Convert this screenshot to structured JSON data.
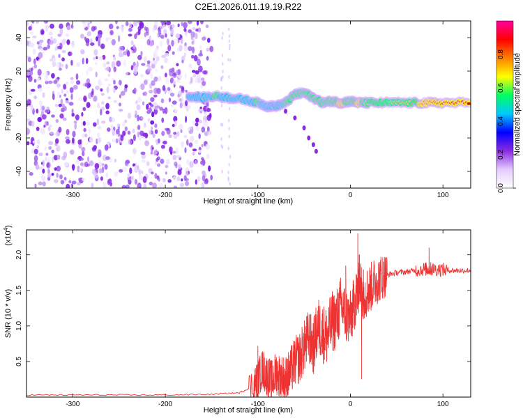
{
  "title": "C2E1.2026.011.19.19.R22",
  "chart_data": [
    {
      "type": "heatmap",
      "name": "spectrogram",
      "xlabel": "Height of straight line (km)",
      "ylabel": "Frequency (Hz)",
      "xlim": [
        -350,
        130
      ],
      "ylim": [
        -50,
        50
      ],
      "xticks": [
        -300,
        -200,
        -100,
        0,
        100
      ],
      "yticks": [
        -40,
        -20,
        0,
        20,
        40
      ],
      "grid": false,
      "colorbar": {
        "label": "Normalized spectral amplitude",
        "range": [
          0,
          1
        ],
        "ticks": [
          "0.0",
          "0.2",
          "0.4",
          "0.6",
          "0.8"
        ],
        "colormap": [
          "#ffffff",
          "#e4ccff",
          "#8a2be2",
          "#0000ff",
          "#00c8ff",
          "#00ff60",
          "#ffff00",
          "#ff8000",
          "#ff0000",
          "#ff00a0"
        ]
      },
      "noise_region_x": [
        -350,
        -150
      ],
      "signal_track": {
        "x": [
          -175,
          -160,
          -145,
          -130,
          -115,
          -100,
          -90,
          -80,
          -70,
          -60,
          -50,
          -40,
          -30,
          -20,
          -10,
          0,
          10,
          20,
          40,
          60,
          80,
          100,
          130
        ],
        "freq": [
          5,
          4,
          5,
          4,
          3,
          1,
          -1,
          -1,
          1,
          6,
          7,
          4,
          1,
          2,
          1,
          2,
          1,
          1,
          1,
          1,
          1,
          1,
          1
        ],
        "amplitude": [
          0.4,
          0.5,
          0.6,
          0.5,
          0.5,
          0.6,
          0.5,
          0.5,
          0.6,
          0.6,
          0.6,
          0.6,
          0.6,
          0.7,
          0.8,
          0.7,
          0.8,
          0.6,
          0.6,
          0.7,
          0.8,
          0.9,
          0.9
        ]
      },
      "side_branch": {
        "x": [
          -70,
          -60,
          -50,
          -45,
          -40,
          -37
        ],
        "freq": [
          -4,
          -8,
          -14,
          -20,
          -24,
          -28
        ]
      }
    },
    {
      "type": "line",
      "name": "snr",
      "xlabel": "Height of straight line (km)",
      "ylabel": "SNR (10 * v/v)",
      "yscale_label": "(x10",
      "yscale_exponent": "4",
      "xlim": [
        -350,
        130
      ],
      "ylim": [
        0,
        2.35
      ],
      "xticks": [
        -300,
        -200,
        -100,
        0,
        100
      ],
      "yticks": [
        "0.5",
        "1.0",
        "1.5",
        "2.0"
      ],
      "color": "#ee3333",
      "x": [
        -350,
        -300,
        -250,
        -200,
        -150,
        -120,
        -105,
        -100,
        -95,
        -90,
        -85,
        -80,
        -75,
        -70,
        -65,
        -60,
        -55,
        -50,
        -45,
        -40,
        -35,
        -30,
        -25,
        -20,
        -15,
        -10,
        -5,
        0,
        5,
        8,
        10,
        12,
        15,
        20,
        25,
        30,
        35,
        40,
        50,
        60,
        70,
        80,
        85,
        90,
        100,
        110,
        120,
        130
      ],
      "y": [
        0.03,
        0.03,
        0.03,
        0.03,
        0.04,
        0.06,
        0.15,
        0.25,
        0.4,
        0.3,
        0.22,
        0.35,
        0.28,
        0.25,
        0.35,
        0.5,
        0.55,
        0.7,
        0.85,
        0.7,
        1.0,
        0.9,
        0.85,
        1.05,
        1.1,
        1.3,
        1.15,
        1.1,
        1.35,
        1.5,
        1.7,
        1.5,
        1.45,
        1.5,
        1.6,
        1.65,
        1.7,
        1.72,
        1.75,
        1.76,
        1.78,
        1.8,
        1.8,
        1.8,
        1.79,
        1.78,
        1.78,
        1.78
      ]
    }
  ]
}
